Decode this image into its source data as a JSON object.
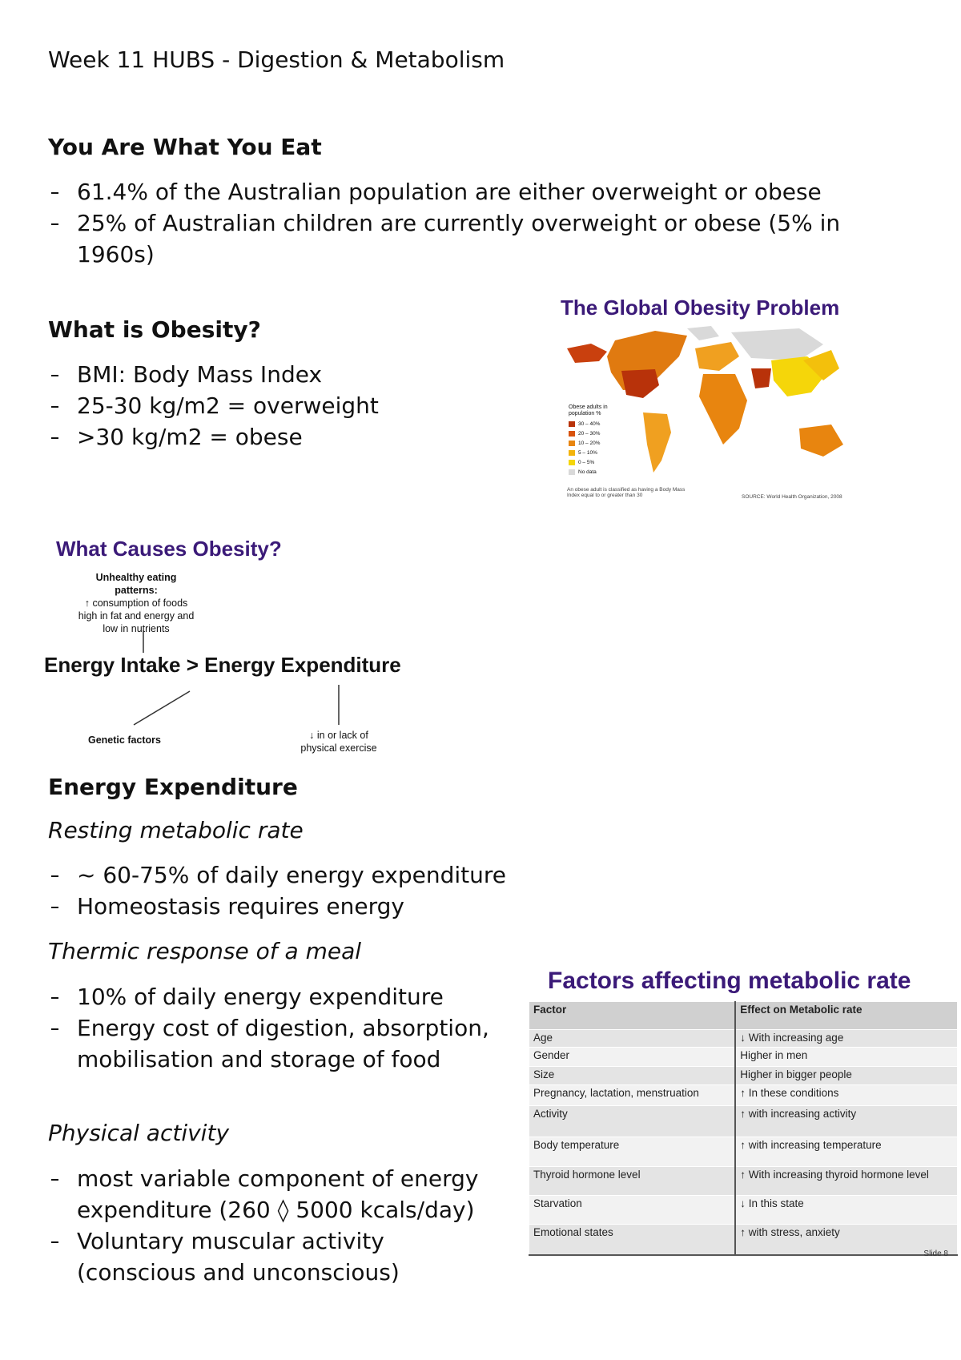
{
  "header": {
    "title": "Week 11 HUBS - Digestion & Metabolism"
  },
  "sections": [
    {
      "heading": "You Are What You Eat",
      "bullets": [
        "61.4% of the Australian population are either overweight or obese",
        "25% of Australian children are currently overweight or obese (5% in 1960s)"
      ]
    },
    {
      "heading": "What is Obesity?",
      "bullets": [
        "BMI: Body Mass Index",
        "25-30 kg/m2 = overweight",
        ">30 kg/m2 = obese"
      ]
    },
    {
      "heading": "Energy Expenditure",
      "subsections": [
        {
          "heading": "Resting metabolic rate",
          "bullets": [
            " ~ 60-75% of daily energy expenditure",
            "Homeostasis requires energy"
          ]
        },
        {
          "heading": "Thermic response of a meal",
          "bullets": [
            " 10% of daily energy expenditure",
            " Energy cost of digestion, absorption, mobilisation and storage of food"
          ]
        },
        {
          "heading": "Physical activity",
          "bullets": [
            "most variable component of energy expenditure (260 ◊ 5000 kcals/day)",
            " Voluntary muscular activity (conscious and unconscious)"
          ]
        }
      ]
    }
  ],
  "figures": {
    "obesity_map": {
      "title": "The Global Obesity Problem",
      "legend_title": "Obese adults in population %",
      "legend": [
        {
          "label": "30 – 40%",
          "color": "#b8320a"
        },
        {
          "label": "20 – 30%",
          "color": "#d9530c"
        },
        {
          "label": "10 – 20%",
          "color": "#e8850f"
        },
        {
          "label": "5 – 10%",
          "color": "#f3b40c"
        },
        {
          "label": "0 – 5%",
          "color": "#f5d60a"
        },
        {
          "label": "No data",
          "color": "#d9d9d9"
        }
      ],
      "note": "An obese adult is classified as having a Body Mass Index equal to or greater than 30",
      "source": "SOURCE: World Health Organization, 2008"
    },
    "causes": {
      "title": "What Causes Obesity?",
      "eating_heading": "Unhealthy eating patterns:",
      "eating_text": "↑ consumption of foods high in fat and energy and low in nutrients",
      "equation": "Energy Intake > Energy Expenditure",
      "genetic": "Genetic factors",
      "exercise": "↓ in or lack of physical exercise"
    },
    "metabolic_table": {
      "title": "Factors affecting metabolic rate",
      "columns": [
        "Factor",
        "Effect on Metabolic rate"
      ],
      "rows": [
        [
          "Age",
          "↓ With increasing age"
        ],
        [
          "Gender",
          "Higher in men"
        ],
        [
          "Size",
          "Higher in bigger people"
        ],
        [
          "Pregnancy, lactation, menstruation",
          "↑ In these conditions"
        ],
        [
          "Activity",
          "↑ with increasing activity"
        ],
        [
          "Body temperature",
          "↑ with increasing temperature"
        ],
        [
          "Thyroid hormone level",
          "↑ With increasing thyroid hormone level"
        ],
        [
          "Starvation",
          "↓ In this state"
        ],
        [
          "Emotional states",
          "↑ with stress, anxiety"
        ]
      ],
      "slide": "Slide 8"
    }
  }
}
